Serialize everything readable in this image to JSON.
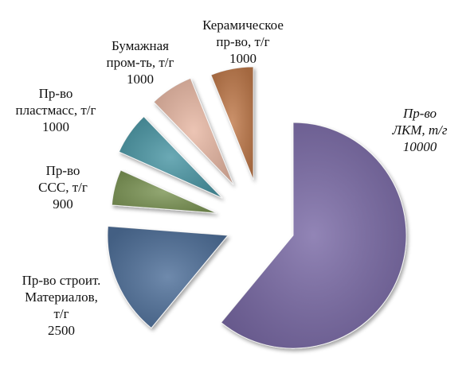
{
  "chart_data": {
    "type": "pie",
    "exploded": true,
    "slices": [
      {
        "key": "lkm",
        "value": 10000,
        "color": "#7a6ba6",
        "label_lines": [
          "Пр-во",
          "ЛКМ, т/г",
          "10000"
        ],
        "italic": true
      },
      {
        "key": "stroit",
        "value": 2500,
        "color": "#4f6f9a",
        "label_lines": [
          "Пр-во строит.",
          "Материалов,",
          "т/г",
          "2500"
        ],
        "italic": false
      },
      {
        "key": "sss",
        "value": 900,
        "color": "#7c9555",
        "label_lines": [
          "Пр-во",
          "ССС, т/г",
          "900"
        ],
        "italic": false
      },
      {
        "key": "plast",
        "value": 1000,
        "color": "#4b97a5",
        "label_lines": [
          "Пр-во",
          "пластмасс, т/г",
          "1000"
        ],
        "italic": false
      },
      {
        "key": "bum",
        "value": 1000,
        "color": "#e8b8a4",
        "label_lines": [
          "Бумажная",
          "пром-ть, т/г",
          "1000"
        ],
        "italic": false
      },
      {
        "key": "keram",
        "value": 1000,
        "color": "#c07a4c",
        "label_lines": [
          "Керамическое",
          "пр-во, т/г",
          "1000"
        ],
        "italic": false
      }
    ]
  }
}
